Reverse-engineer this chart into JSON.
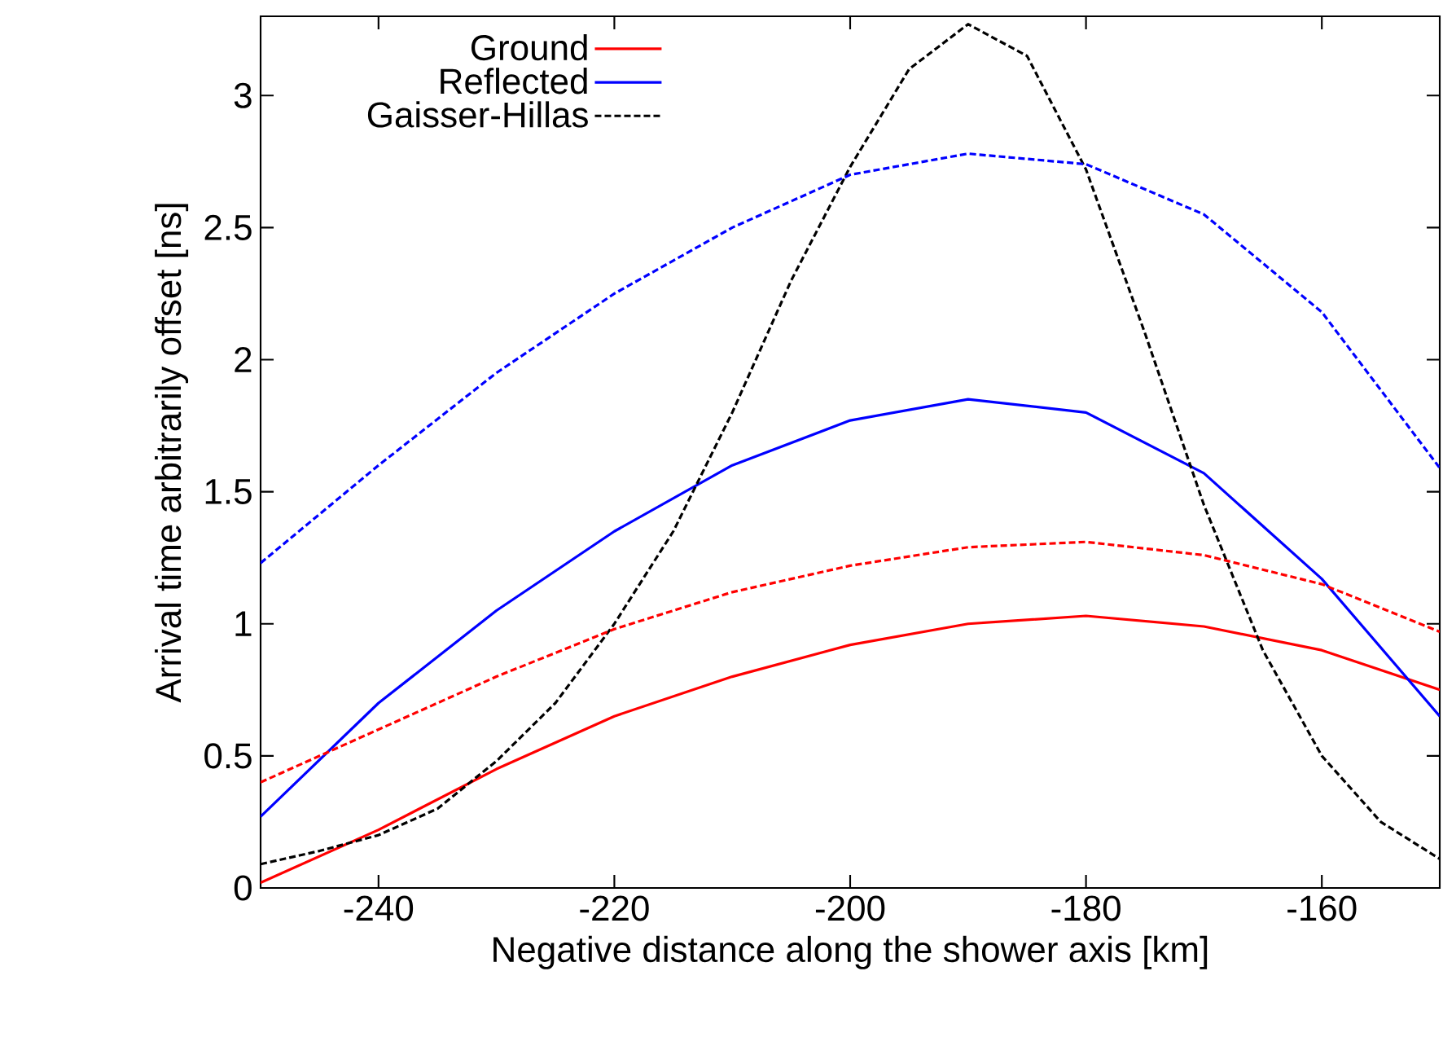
{
  "chart_data": {
    "type": "line",
    "xlabel": "Negative distance along the shower axis [km]",
    "ylabel": "Arrival time arbitrarily offset [ns]",
    "xlim": [
      -250,
      -150
    ],
    "ylim": [
      0,
      3.3
    ],
    "xticks": [
      -240,
      -220,
      -200,
      -180,
      -160
    ],
    "yticks": [
      0,
      0.5,
      1,
      1.5,
      2,
      2.5,
      3
    ],
    "grid": false,
    "legend": "top left",
    "marker": "none",
    "x": [
      -250,
      -240,
      -230,
      -220,
      -210,
      -200,
      -190,
      -180,
      -170,
      -160,
      -150
    ],
    "series": [
      {
        "name": "Ground",
        "color": "#ff0000",
        "line_style": "solid",
        "values": [
          0.02,
          0.22,
          0.45,
          0.65,
          0.8,
          0.92,
          1.0,
          1.03,
          0.99,
          0.9,
          0.75
        ]
      },
      {
        "name": "Reflected",
        "color": "#0000ff",
        "line_style": "solid",
        "values": [
          0.27,
          0.7,
          1.05,
          1.35,
          1.6,
          1.77,
          1.85,
          1.8,
          1.57,
          1.17,
          0.65
        ]
      },
      {
        "name": "Gaisser-Hillas",
        "color": "#000000",
        "line_style": "dashed",
        "x": [
          -250,
          -245,
          -240,
          -235,
          -230,
          -225,
          -220,
          -215,
          -210,
          -205,
          -200,
          -195,
          -190,
          -185,
          -180,
          -175,
          -170,
          -165,
          -160,
          -155,
          -150
        ],
        "values": [
          0.09,
          0.14,
          0.2,
          0.3,
          0.48,
          0.7,
          1.0,
          1.35,
          1.8,
          2.3,
          2.73,
          3.1,
          3.27,
          3.15,
          2.72,
          2.1,
          1.45,
          0.9,
          0.5,
          0.25,
          0.11
        ]
      },
      {
        "color": "#ff0000",
        "line_style": "dashed",
        "values": [
          0.4,
          0.6,
          0.8,
          0.98,
          1.12,
          1.22,
          1.29,
          1.31,
          1.26,
          1.15,
          0.97
        ]
      },
      {
        "color": "#0000ff",
        "line_style": "dashed",
        "values": [
          1.23,
          1.6,
          1.95,
          2.25,
          2.5,
          2.7,
          2.78,
          2.74,
          2.55,
          2.18,
          1.59
        ]
      }
    ]
  }
}
